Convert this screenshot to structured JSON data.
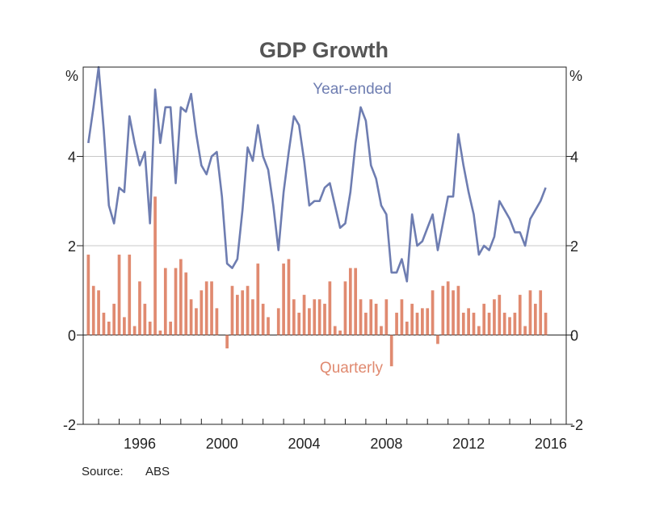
{
  "chart_data": {
    "type": "bar+line",
    "title": "GDP Growth",
    "y_unit_left": "%",
    "y_unit_right": "%",
    "ylim": [
      -2,
      6
    ],
    "yticks": [
      -2,
      0,
      2,
      4
    ],
    "ytick_labels": [
      "-2",
      "0",
      "2",
      "4"
    ],
    "xlim": [
      1993.25,
      2016.75
    ],
    "xticks": [
      1996,
      2000,
      2004,
      2008,
      2012,
      2016
    ],
    "xtick_labels": [
      "1996",
      "2000",
      "2004",
      "2008",
      "2012",
      "2016"
    ],
    "grid": true,
    "source_label": "Source:",
    "source_value": "ABS",
    "colors": {
      "year_ended": "#6e7db1",
      "quarterly": "#e08a70",
      "grid": "#c8c8c8",
      "axis": "#222222"
    },
    "series": [
      {
        "name": "Year-ended",
        "kind": "line",
        "start_year": 1993.5,
        "step": 0.25,
        "values": [
          4.3,
          5.1,
          6.0,
          4.6,
          2.9,
          2.5,
          3.3,
          3.2,
          4.9,
          4.3,
          3.8,
          4.1,
          2.5,
          5.5,
          4.3,
          5.1,
          5.1,
          3.4,
          5.1,
          5.0,
          5.4,
          4.5,
          3.8,
          3.6,
          4.0,
          4.1,
          3.1,
          1.6,
          1.5,
          1.7,
          2.8,
          4.2,
          3.9,
          4.7,
          4.0,
          3.7,
          2.9,
          1.9,
          3.2,
          4.1,
          4.9,
          4.7,
          3.9,
          2.9,
          3.0,
          3.0,
          3.3,
          3.4,
          2.9,
          2.4,
          2.5,
          3.2,
          4.3,
          5.1,
          4.8,
          3.8,
          3.5,
          2.9,
          2.7,
          1.4,
          1.4,
          1.7,
          1.2,
          2.7,
          2.0,
          2.1,
          2.4,
          2.7,
          1.9,
          2.5,
          3.1,
          3.1,
          4.5,
          3.8,
          3.2,
          2.7,
          1.8,
          2.0,
          1.9,
          2.2,
          3.0,
          2.8,
          2.6,
          2.3,
          2.3,
          2.0,
          2.6,
          2.8,
          3.0,
          3.3
        ]
      },
      {
        "name": "Quarterly",
        "kind": "bar",
        "start_year": 1993.5,
        "step": 0.25,
        "values": [
          1.8,
          1.1,
          1.0,
          0.5,
          0.3,
          0.7,
          1.8,
          0.4,
          1.8,
          0.2,
          1.2,
          0.7,
          0.3,
          3.1,
          0.1,
          1.5,
          0.3,
          1.5,
          1.7,
          1.4,
          0.8,
          0.6,
          1.0,
          1.2,
          1.2,
          0.6,
          0.0,
          -0.3,
          1.1,
          0.9,
          1.0,
          1.1,
          0.8,
          1.6,
          0.7,
          0.4,
          0.0,
          0.6,
          1.6,
          1.7,
          0.8,
          0.5,
          0.9,
          0.6,
          0.8,
          0.8,
          0.7,
          1.2,
          0.2,
          0.1,
          1.2,
          1.5,
          1.5,
          0.8,
          0.5,
          0.8,
          0.7,
          0.2,
          0.8,
          -0.7,
          0.5,
          0.8,
          0.3,
          0.7,
          0.5,
          0.6,
          0.6,
          1.0,
          -0.2,
          1.1,
          1.2,
          1.0,
          1.1,
          0.5,
          0.6,
          0.5,
          0.2,
          0.7,
          0.5,
          0.8,
          0.9,
          0.5,
          0.4,
          0.5,
          0.9,
          0.2,
          1.0,
          0.7,
          1.0,
          0.5
        ]
      }
    ]
  }
}
